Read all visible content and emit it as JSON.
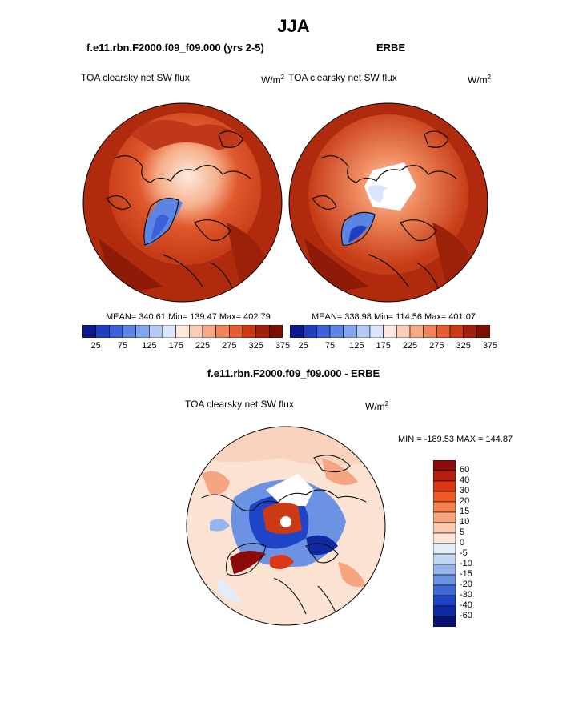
{
  "title": "JJA",
  "panels": [
    {
      "heading": "f.e11.rbn.F2000.f09_f09.000 (yrs 2-5)",
      "field_label": "TOA clearsky net SW flux",
      "unit": "W/m",
      "unit_exp": "2",
      "stats": "MEAN= 340.61  Min= 139.47  Max= 402.79"
    },
    {
      "heading": "ERBE",
      "field_label": "TOA clearsky net SW flux",
      "unit": "W/m",
      "unit_exp": "2",
      "stats": "MEAN= 338.98  Min= 114.56  Max= 401.07"
    }
  ],
  "abs_colorbar": {
    "colors": [
      "#0a1a8c",
      "#1f3fbf",
      "#3a62d6",
      "#5b84e3",
      "#84a6ee",
      "#b3c9f4",
      "#dce6fa",
      "#fbe9df",
      "#f9cdb8",
      "#f6a986",
      "#f0845a",
      "#e45e31",
      "#cb3a14",
      "#a2200b",
      "#7a1006"
    ],
    "tick_labels": [
      "25",
      "75",
      "125",
      "175",
      "225",
      "275",
      "325",
      "375"
    ]
  },
  "diff": {
    "heading": "f.e11.rbn.F2000.f09_f09.000 - ERBE",
    "field_label": "TOA clearsky net SW flux",
    "unit": "W/m",
    "unit_exp": "2",
    "minmax": "MIN = -189.53 MAX = 144.87",
    "colors": [
      "#8c0a0a",
      "#b81e0d",
      "#dc3712",
      "#f25a24",
      "#f5814e",
      "#f8a57f",
      "#fbcaae",
      "#fde6d8",
      "#e3edf9",
      "#c1d6f3",
      "#95b5ec",
      "#6b92e3",
      "#3e6ad9",
      "#1e45c8",
      "#0e2aa3",
      "#0a1373"
    ],
    "tick_labels": [
      "60",
      "40",
      "30",
      "20",
      "15",
      "10",
      "5",
      "0",
      "-5",
      "-10",
      "-15",
      "-20",
      "-30",
      "-40",
      "-60"
    ]
  }
}
